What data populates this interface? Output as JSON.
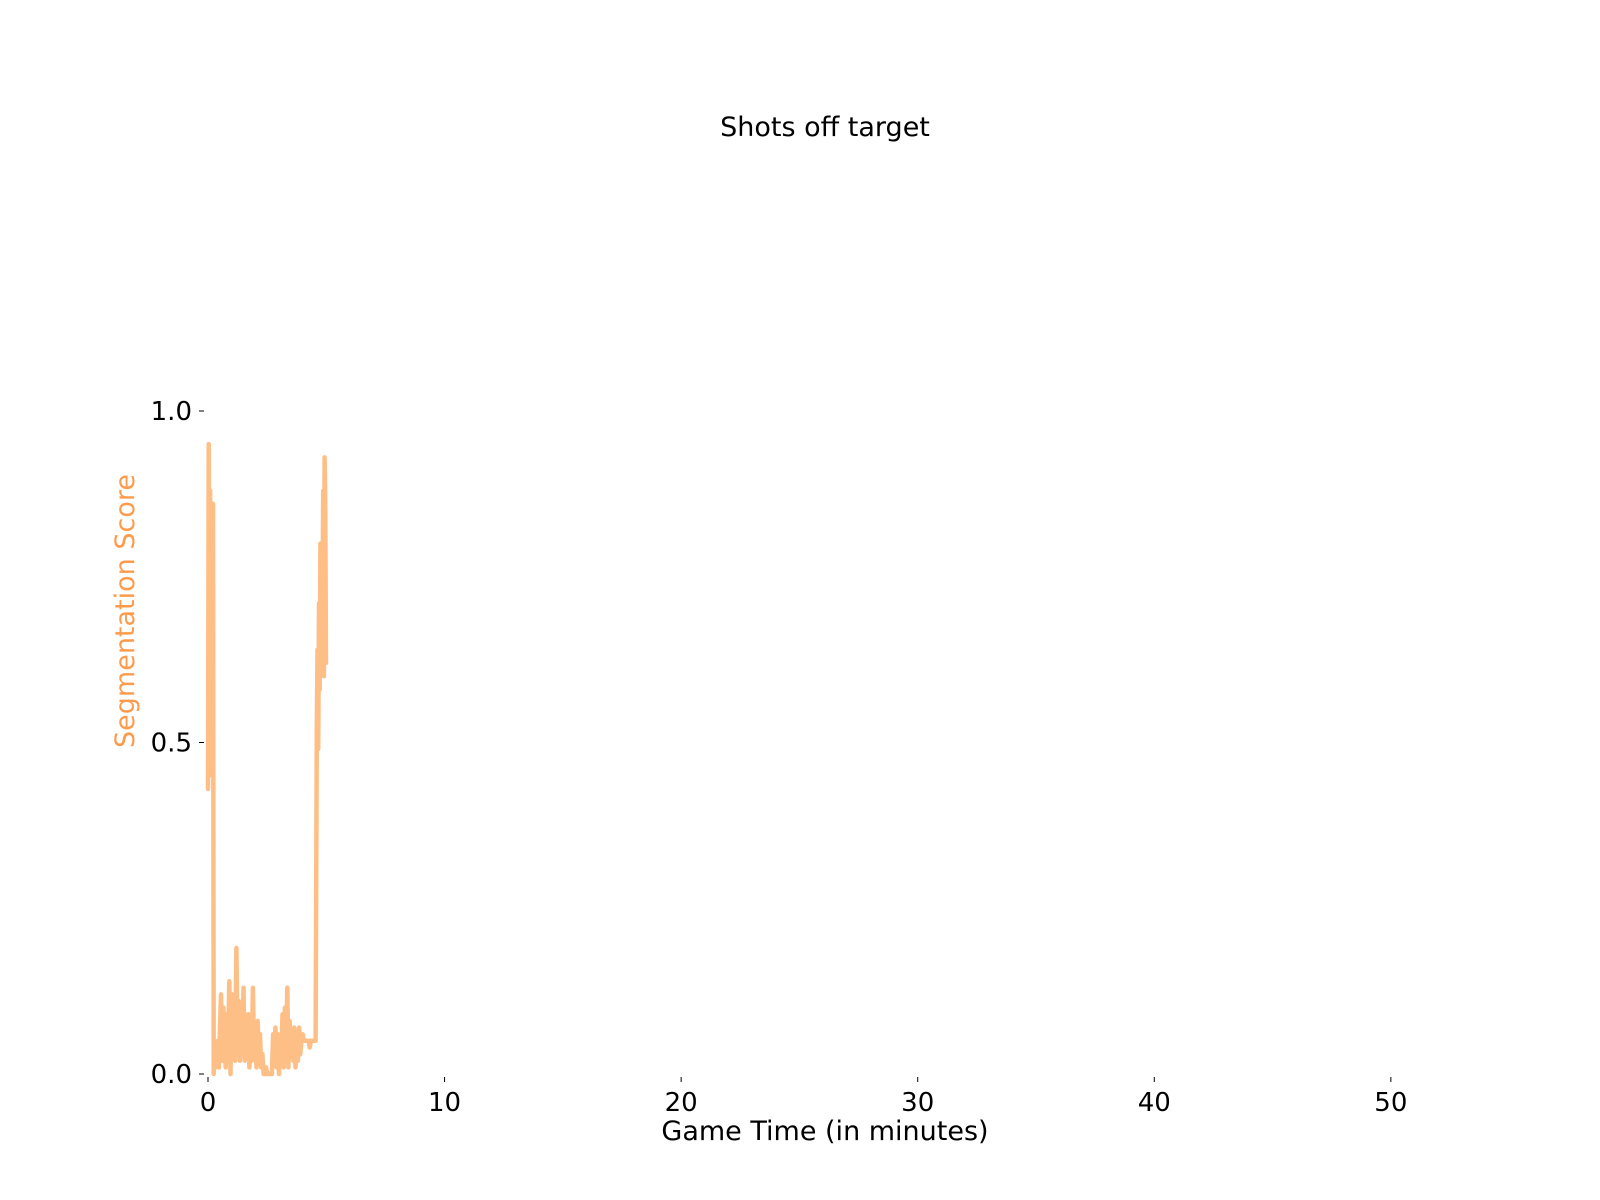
{
  "chart_data": {
    "type": "line",
    "title": "Shots off target",
    "xlabel": "Game Time (in minutes)",
    "ylabel": "Segmentation Score",
    "xlim": [
      0,
      52.5
    ],
    "ylim": [
      0,
      1.0
    ],
    "x_ticks": [
      {
        "value": 0,
        "label": "0"
      },
      {
        "value": 10,
        "label": "10"
      },
      {
        "value": 20,
        "label": "20"
      },
      {
        "value": 30,
        "label": "30"
      },
      {
        "value": 40,
        "label": "40"
      },
      {
        "value": 50,
        "label": "50"
      }
    ],
    "y_ticks": [
      {
        "value": 0.0,
        "label": "0.0"
      },
      {
        "value": 0.5,
        "label": "0.5"
      },
      {
        "value": 1.0,
        "label": "1.0"
      }
    ],
    "grid": false,
    "colors": {
      "line": "#fdbf86",
      "ylabel": "#fd9b4c",
      "text": "#000000"
    },
    "series": [
      {
        "x": [
          0.0,
          0.03,
          0.06,
          0.09,
          0.12,
          0.15,
          0.18,
          0.21,
          0.24,
          0.27,
          0.3,
          0.34,
          0.38,
          0.42,
          0.46,
          0.5,
          0.55,
          0.6,
          0.65,
          0.7,
          0.75,
          0.8,
          0.85,
          0.9,
          0.95,
          1.0,
          1.05,
          1.1,
          1.15,
          1.2,
          1.25,
          1.3,
          1.35,
          1.4,
          1.45,
          1.5,
          1.55,
          1.6,
          1.65,
          1.7,
          1.75,
          1.8,
          1.85,
          1.9,
          1.95,
          2.0,
          2.05,
          2.1,
          2.15,
          2.2,
          2.25,
          2.3,
          2.35,
          2.4,
          2.45,
          2.5,
          2.55,
          2.6,
          2.65,
          2.7,
          2.75,
          2.8,
          2.85,
          2.9,
          2.95,
          3.0,
          3.05,
          3.1,
          3.15,
          3.2,
          3.25,
          3.3,
          3.35,
          3.4,
          3.45,
          3.5,
          3.55,
          3.6,
          3.65,
          3.7,
          3.75,
          3.8,
          3.85,
          3.9,
          3.95,
          4.0,
          4.05,
          4.1,
          4.15,
          4.2,
          4.25,
          4.3,
          4.35,
          4.4,
          4.45,
          4.5,
          4.55,
          4.6,
          4.63,
          4.66,
          4.69,
          4.72,
          4.75,
          4.78,
          4.81,
          4.84,
          4.87,
          4.9,
          4.93,
          4.96,
          4.99
        ],
        "values": [
          0.43,
          0.95,
          0.45,
          0.88,
          0.47,
          0.86,
          0.46,
          0.86,
          0.0,
          0.02,
          0.01,
          0.03,
          0.02,
          0.05,
          0.01,
          0.06,
          0.12,
          0.02,
          0.1,
          0.05,
          0.01,
          0.09,
          0.03,
          0.14,
          0.0,
          0.12,
          0.04,
          0.08,
          0.02,
          0.19,
          0.03,
          0.11,
          0.02,
          0.1,
          0.04,
          0.13,
          0.02,
          0.07,
          0.05,
          0.09,
          0.01,
          0.06,
          0.02,
          0.13,
          0.03,
          0.05,
          0.01,
          0.08,
          0.02,
          0.06,
          0.01,
          0.03,
          0.0,
          0.0,
          0.01,
          0.0,
          0.0,
          0.0,
          0.0,
          0.0,
          0.06,
          0.02,
          0.07,
          0.01,
          0.06,
          0.0,
          0.04,
          0.02,
          0.09,
          0.01,
          0.1,
          0.03,
          0.13,
          0.01,
          0.08,
          0.04,
          0.06,
          0.02,
          0.07,
          0.01,
          0.05,
          0.02,
          0.07,
          0.03,
          0.05,
          0.06,
          0.05,
          0.05,
          0.05,
          0.05,
          0.05,
          0.04,
          0.05,
          0.05,
          0.05,
          0.05,
          0.05,
          0.52,
          0.64,
          0.49,
          0.71,
          0.58,
          0.8,
          0.63,
          0.78,
          0.7,
          0.88,
          0.6,
          0.93,
          0.85,
          0.62
        ]
      }
    ]
  }
}
